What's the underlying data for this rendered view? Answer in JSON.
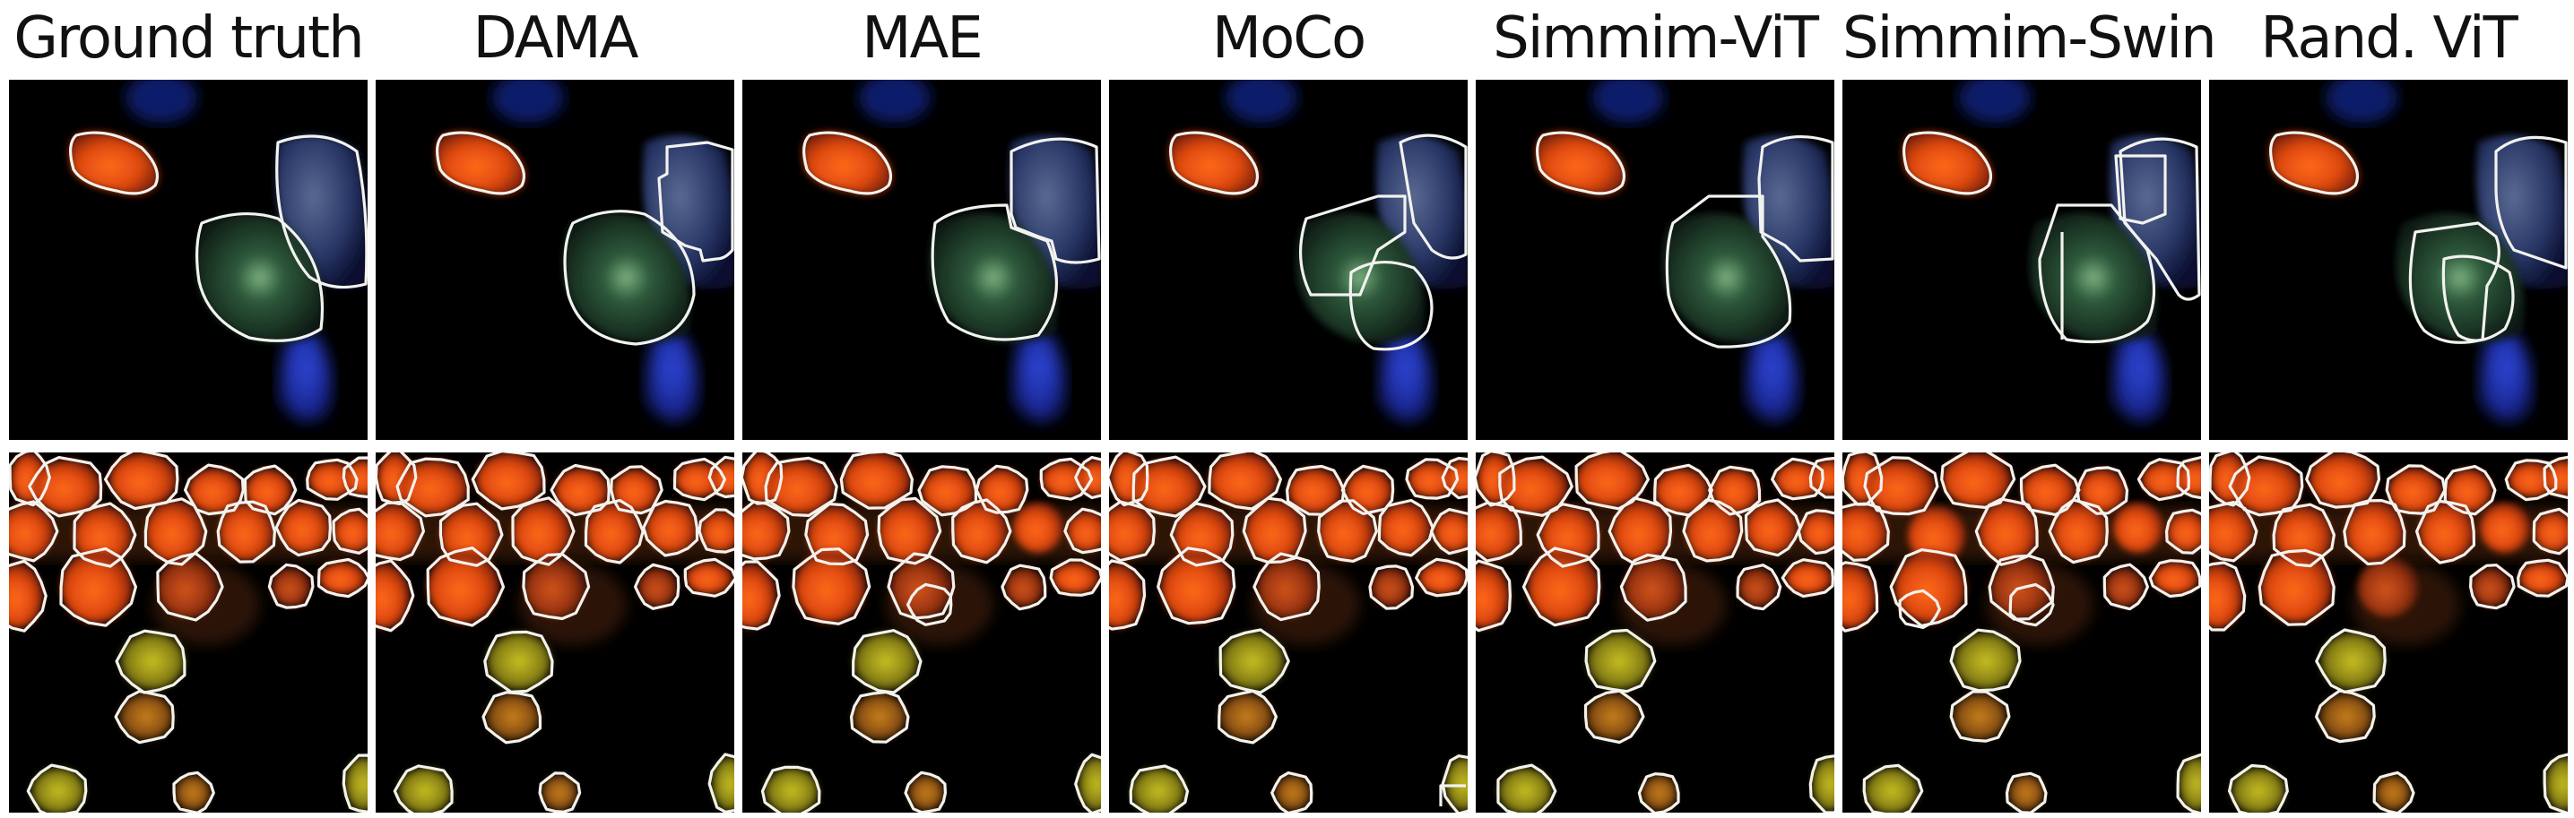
{
  "figure": {
    "columns": [
      {
        "id": "ground-truth",
        "label": "Ground truth"
      },
      {
        "id": "dama",
        "label": "DAMA"
      },
      {
        "id": "mae",
        "label": "MAE"
      },
      {
        "id": "moco",
        "label": "MoCo"
      },
      {
        "id": "simmim-vit",
        "label": "Simmim-ViT"
      },
      {
        "id": "simmim-swin",
        "label": "Simmim-Swin"
      },
      {
        "id": "rand-vit",
        "label": "Rand. ViT"
      }
    ],
    "rows": [
      "sample-1",
      "sample-2"
    ],
    "colors": {
      "background": "#000000",
      "outline": "#f2f2ee",
      "nucleus_red": "#ff5a10",
      "nucleus_yellow": "#b9b320",
      "nucleus_blue": "#2d3fd0",
      "nucleus_green": "#3a7a40"
    }
  }
}
